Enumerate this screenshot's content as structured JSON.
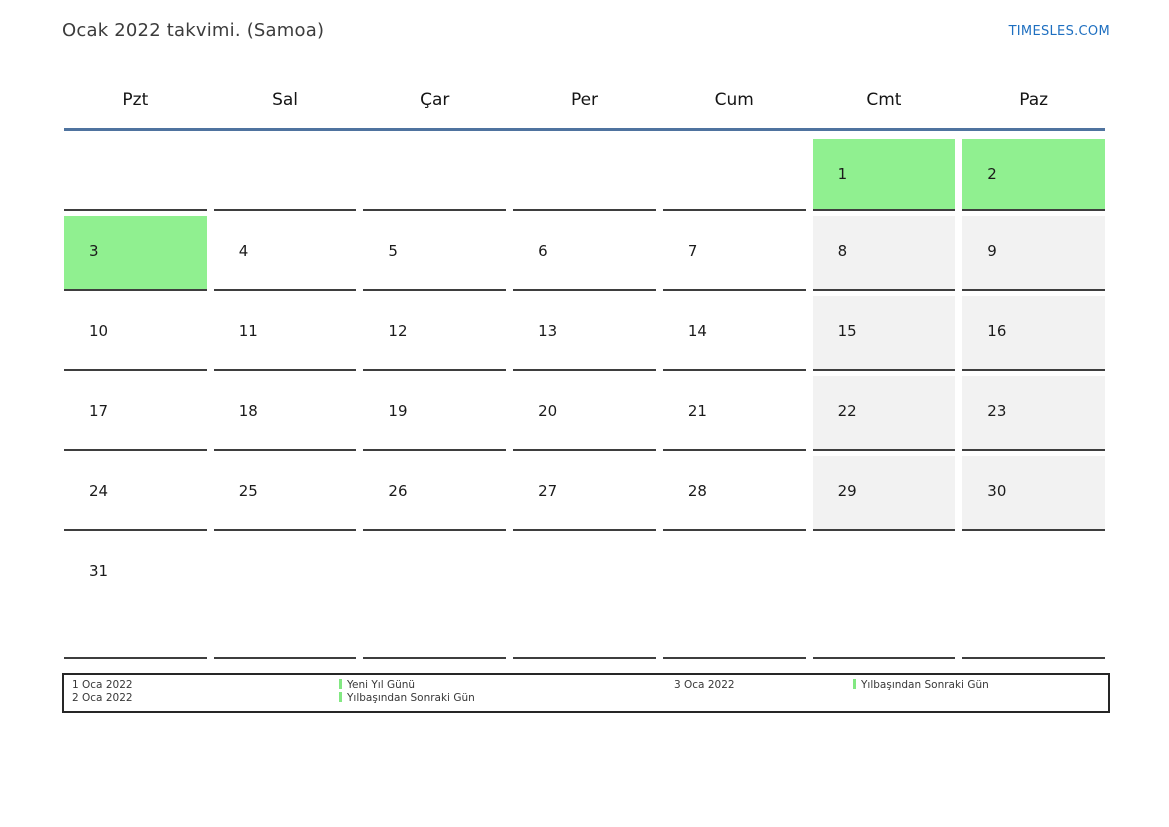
{
  "header": {
    "title": "Ocak 2022 takvimi. (Samoa)",
    "brand": "TIMESLES.COM"
  },
  "calendar": {
    "weekdays": [
      "Pzt",
      "Sal",
      "Çar",
      "Per",
      "Cum",
      "Cmt",
      "Paz"
    ],
    "weeks": [
      [
        "",
        "",
        "",
        "",
        "",
        "1",
        "2"
      ],
      [
        "3",
        "4",
        "5",
        "6",
        "7",
        "8",
        "9"
      ],
      [
        "10",
        "11",
        "12",
        "13",
        "14",
        "15",
        "16"
      ],
      [
        "17",
        "18",
        "19",
        "20",
        "21",
        "22",
        "23"
      ],
      [
        "24",
        "25",
        "26",
        "27",
        "28",
        "29",
        "30"
      ],
      [
        "31",
        "",
        "",
        "",
        "",
        "",
        ""
      ]
    ],
    "weekend_columns": [
      5,
      6
    ],
    "highlighted_days": [
      "1",
      "2",
      "3"
    ],
    "colors": {
      "highlight_green": "#90f090",
      "weekend_gray": "#f2f2f2",
      "header_line_blue": "#4f739f",
      "brand_blue": "#1e6fc0",
      "legend_marker_green": "#82e882"
    }
  },
  "legend": {
    "entries": [
      {
        "date": "1 Oca 2022",
        "name": "Yeni Yıl Günü"
      },
      {
        "date": "2 Oca 2022",
        "name": "Yılbaşından Sonraki Gün"
      },
      {
        "date": "3 Oca 2022",
        "name": "Yılbaşından Sonraki Gün"
      }
    ]
  }
}
